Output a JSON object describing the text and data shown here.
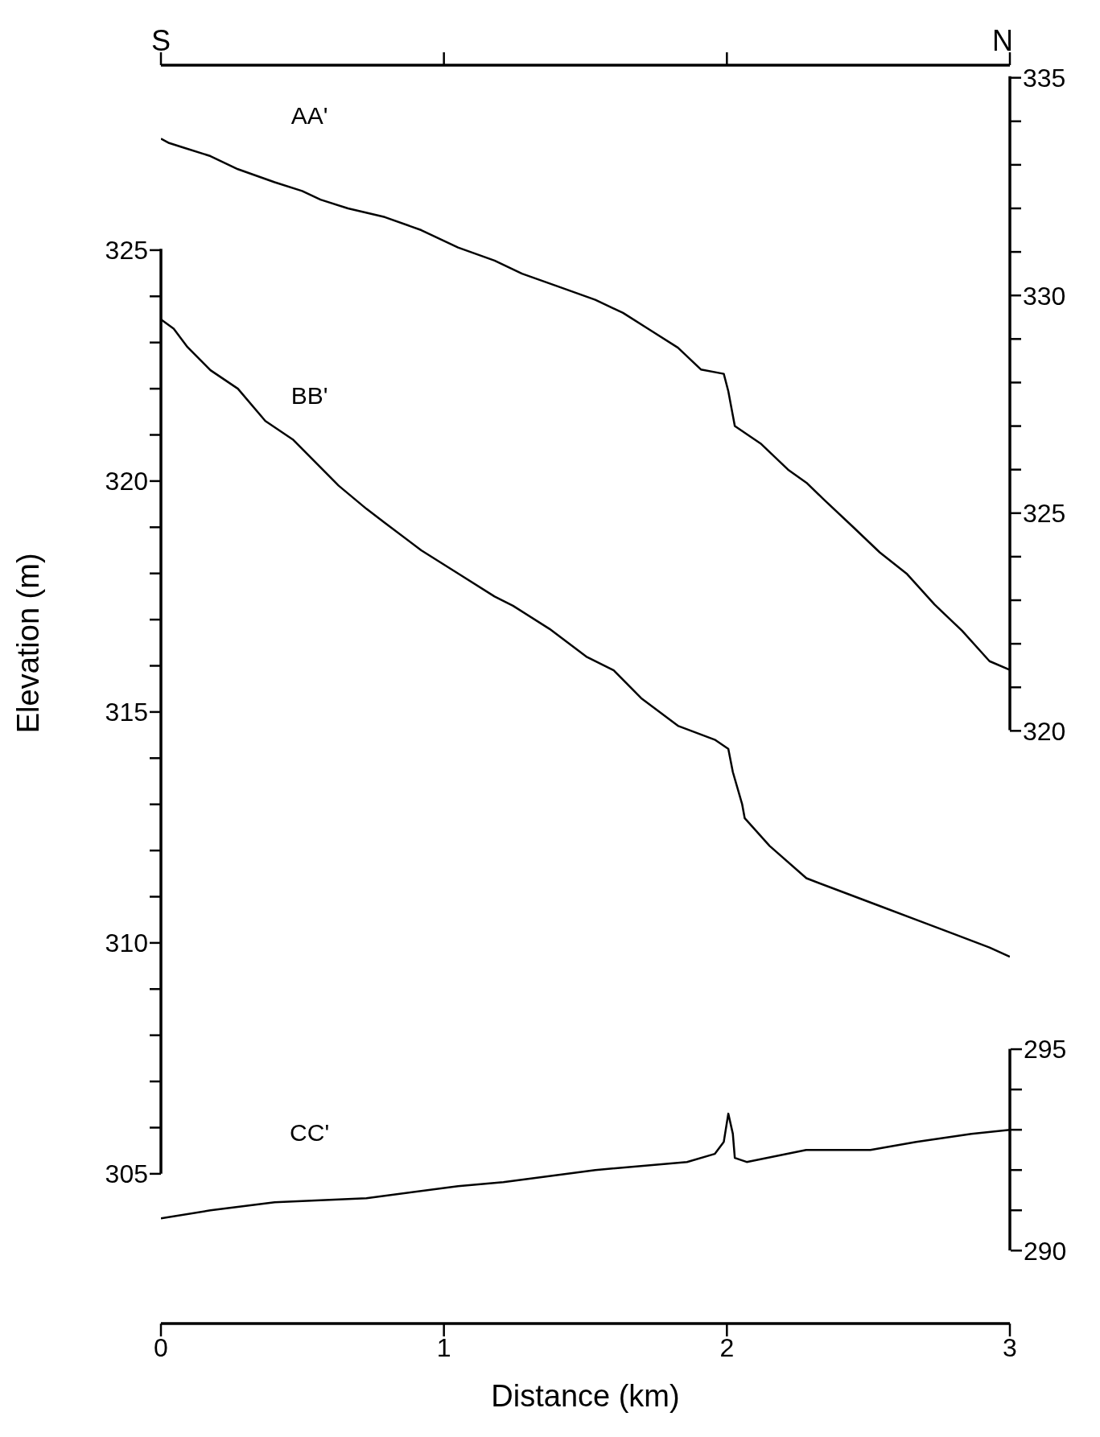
{
  "chart_data": {
    "type": "line",
    "xlabel": "Distance (km)",
    "ylabel": "Elevation (m)",
    "annotations": [
      "S",
      "N"
    ],
    "xlim": [
      0,
      3
    ],
    "xticks": [
      0,
      1,
      2,
      3
    ],
    "ylim": [
      305,
      325
    ],
    "yticks": [
      305,
      {
        "value": 306,
        "label": null
      },
      {
        "value": 307,
        "label": null
      },
      {
        "value": 308,
        "label": null
      },
      {
        "value": 309,
        "label": null
      },
      310,
      {
        "value": 311,
        "label": null
      },
      {
        "value": 312,
        "label": null
      },
      {
        "value": 313,
        "label": null
      },
      {
        "value": 314,
        "label": null
      },
      315,
      {
        "value": 316,
        "label": null
      },
      {
        "value": 317,
        "label": null
      },
      {
        "value": 318,
        "label": null
      },
      {
        "value": 319,
        "label": null
      },
      320,
      {
        "value": 321,
        "label": null
      },
      {
        "value": 322,
        "label": null
      },
      {
        "value": 323,
        "label": null
      },
      {
        "value": 324,
        "label": null
      },
      325
    ],
    "y2lim": [
      320,
      335
    ],
    "y2ticks": [
      320,
      {
        "value": 321,
        "label": null
      },
      {
        "value": 322,
        "label": null
      },
      {
        "value": 323,
        "label": null
      },
      {
        "value": 324,
        "label": null
      },
      325,
      {
        "value": 326,
        "label": null
      },
      {
        "value": 327,
        "label": null
      },
      {
        "value": 328,
        "label": null
      },
      {
        "value": 329,
        "label": null
      },
      330,
      {
        "value": 331,
        "label": null
      },
      {
        "value": 332,
        "label": null
      },
      {
        "value": 333,
        "label": null
      },
      {
        "value": 334,
        "label": null
      },
      335
    ],
    "y3lim": [
      290,
      295
    ],
    "y3ticks": [
      290,
      {
        "value": 291,
        "label": null
      },
      {
        "value": 292,
        "label": null
      },
      {
        "value": 293,
        "label": null
      },
      {
        "value": 294,
        "label": null
      },
      295
    ],
    "marker": "none",
    "line_style": "solid",
    "series": [
      {
        "name": "AA'",
        "color": "#000000",
        "axis": "y2",
        "x": [
          0,
          0.029,
          0.078,
          0.175,
          0.272,
          0.402,
          0.499,
          0.564,
          0.661,
          0.791,
          0.92,
          1.05,
          1.179,
          1.276,
          1.406,
          1.535,
          1.633,
          1.73,
          1.827,
          1.908,
          1.989,
          2.005,
          2.028,
          2.119,
          2.216,
          2.281,
          2.345,
          2.443,
          2.54,
          2.637,
          2.734,
          2.831,
          2.928,
          3
        ],
        "values": [
          333.6,
          333.5,
          333.4,
          333.2,
          332.9,
          332.6,
          332.4,
          332.2,
          332.0,
          331.8,
          331.5,
          331.1,
          330.8,
          330.5,
          330.2,
          329.9,
          329.6,
          329.2,
          328.8,
          328.3,
          328.2,
          327.8,
          327.0,
          326.6,
          326.0,
          325.7,
          325.3,
          324.7,
          324.1,
          323.6,
          322.9,
          322.3,
          321.6,
          321.4
        ]
      },
      {
        "name": "BB'",
        "color": "#000000",
        "axis": "y",
        "x": [
          0,
          0.045,
          0.094,
          0.175,
          0.272,
          0.369,
          0.466,
          0.547,
          0.628,
          0.726,
          0.79,
          0.92,
          1.05,
          1.179,
          1.244,
          1.373,
          1.503,
          1.6,
          1.697,
          1.827,
          1.957,
          2.005,
          2.021,
          2.054,
          2.063,
          2.151,
          2.281,
          2.41,
          2.54,
          2.669,
          2.799,
          2.928,
          3
        ],
        "values": [
          323.5,
          323.3,
          322.9,
          322.4,
          322.0,
          321.3,
          320.9,
          320.4,
          319.9,
          319.4,
          319.1,
          318.5,
          318.0,
          317.5,
          317.3,
          316.8,
          316.2,
          315.9,
          315.3,
          314.7,
          314.4,
          314.2,
          313.7,
          313.0,
          312.7,
          312.1,
          311.4,
          311.1,
          310.8,
          310.5,
          310.2,
          309.9,
          309.7
        ]
      },
      {
        "name": "CC'",
        "color": "#000000",
        "axis": "y3",
        "x": [
          0,
          0.175,
          0.402,
          0.726,
          1.05,
          1.21,
          1.535,
          1.859,
          1.957,
          1.989,
          2.005,
          2.021,
          2.028,
          2.07,
          2.28,
          2.507,
          2.669,
          2.864,
          3
        ],
        "values": [
          290.8,
          291.0,
          291.2,
          291.3,
          291.6,
          291.7,
          292.0,
          292.2,
          292.4,
          292.7,
          293.4,
          292.9,
          292.3,
          292.2,
          292.5,
          292.5,
          292.7,
          292.9,
          293.0
        ]
      }
    ]
  }
}
